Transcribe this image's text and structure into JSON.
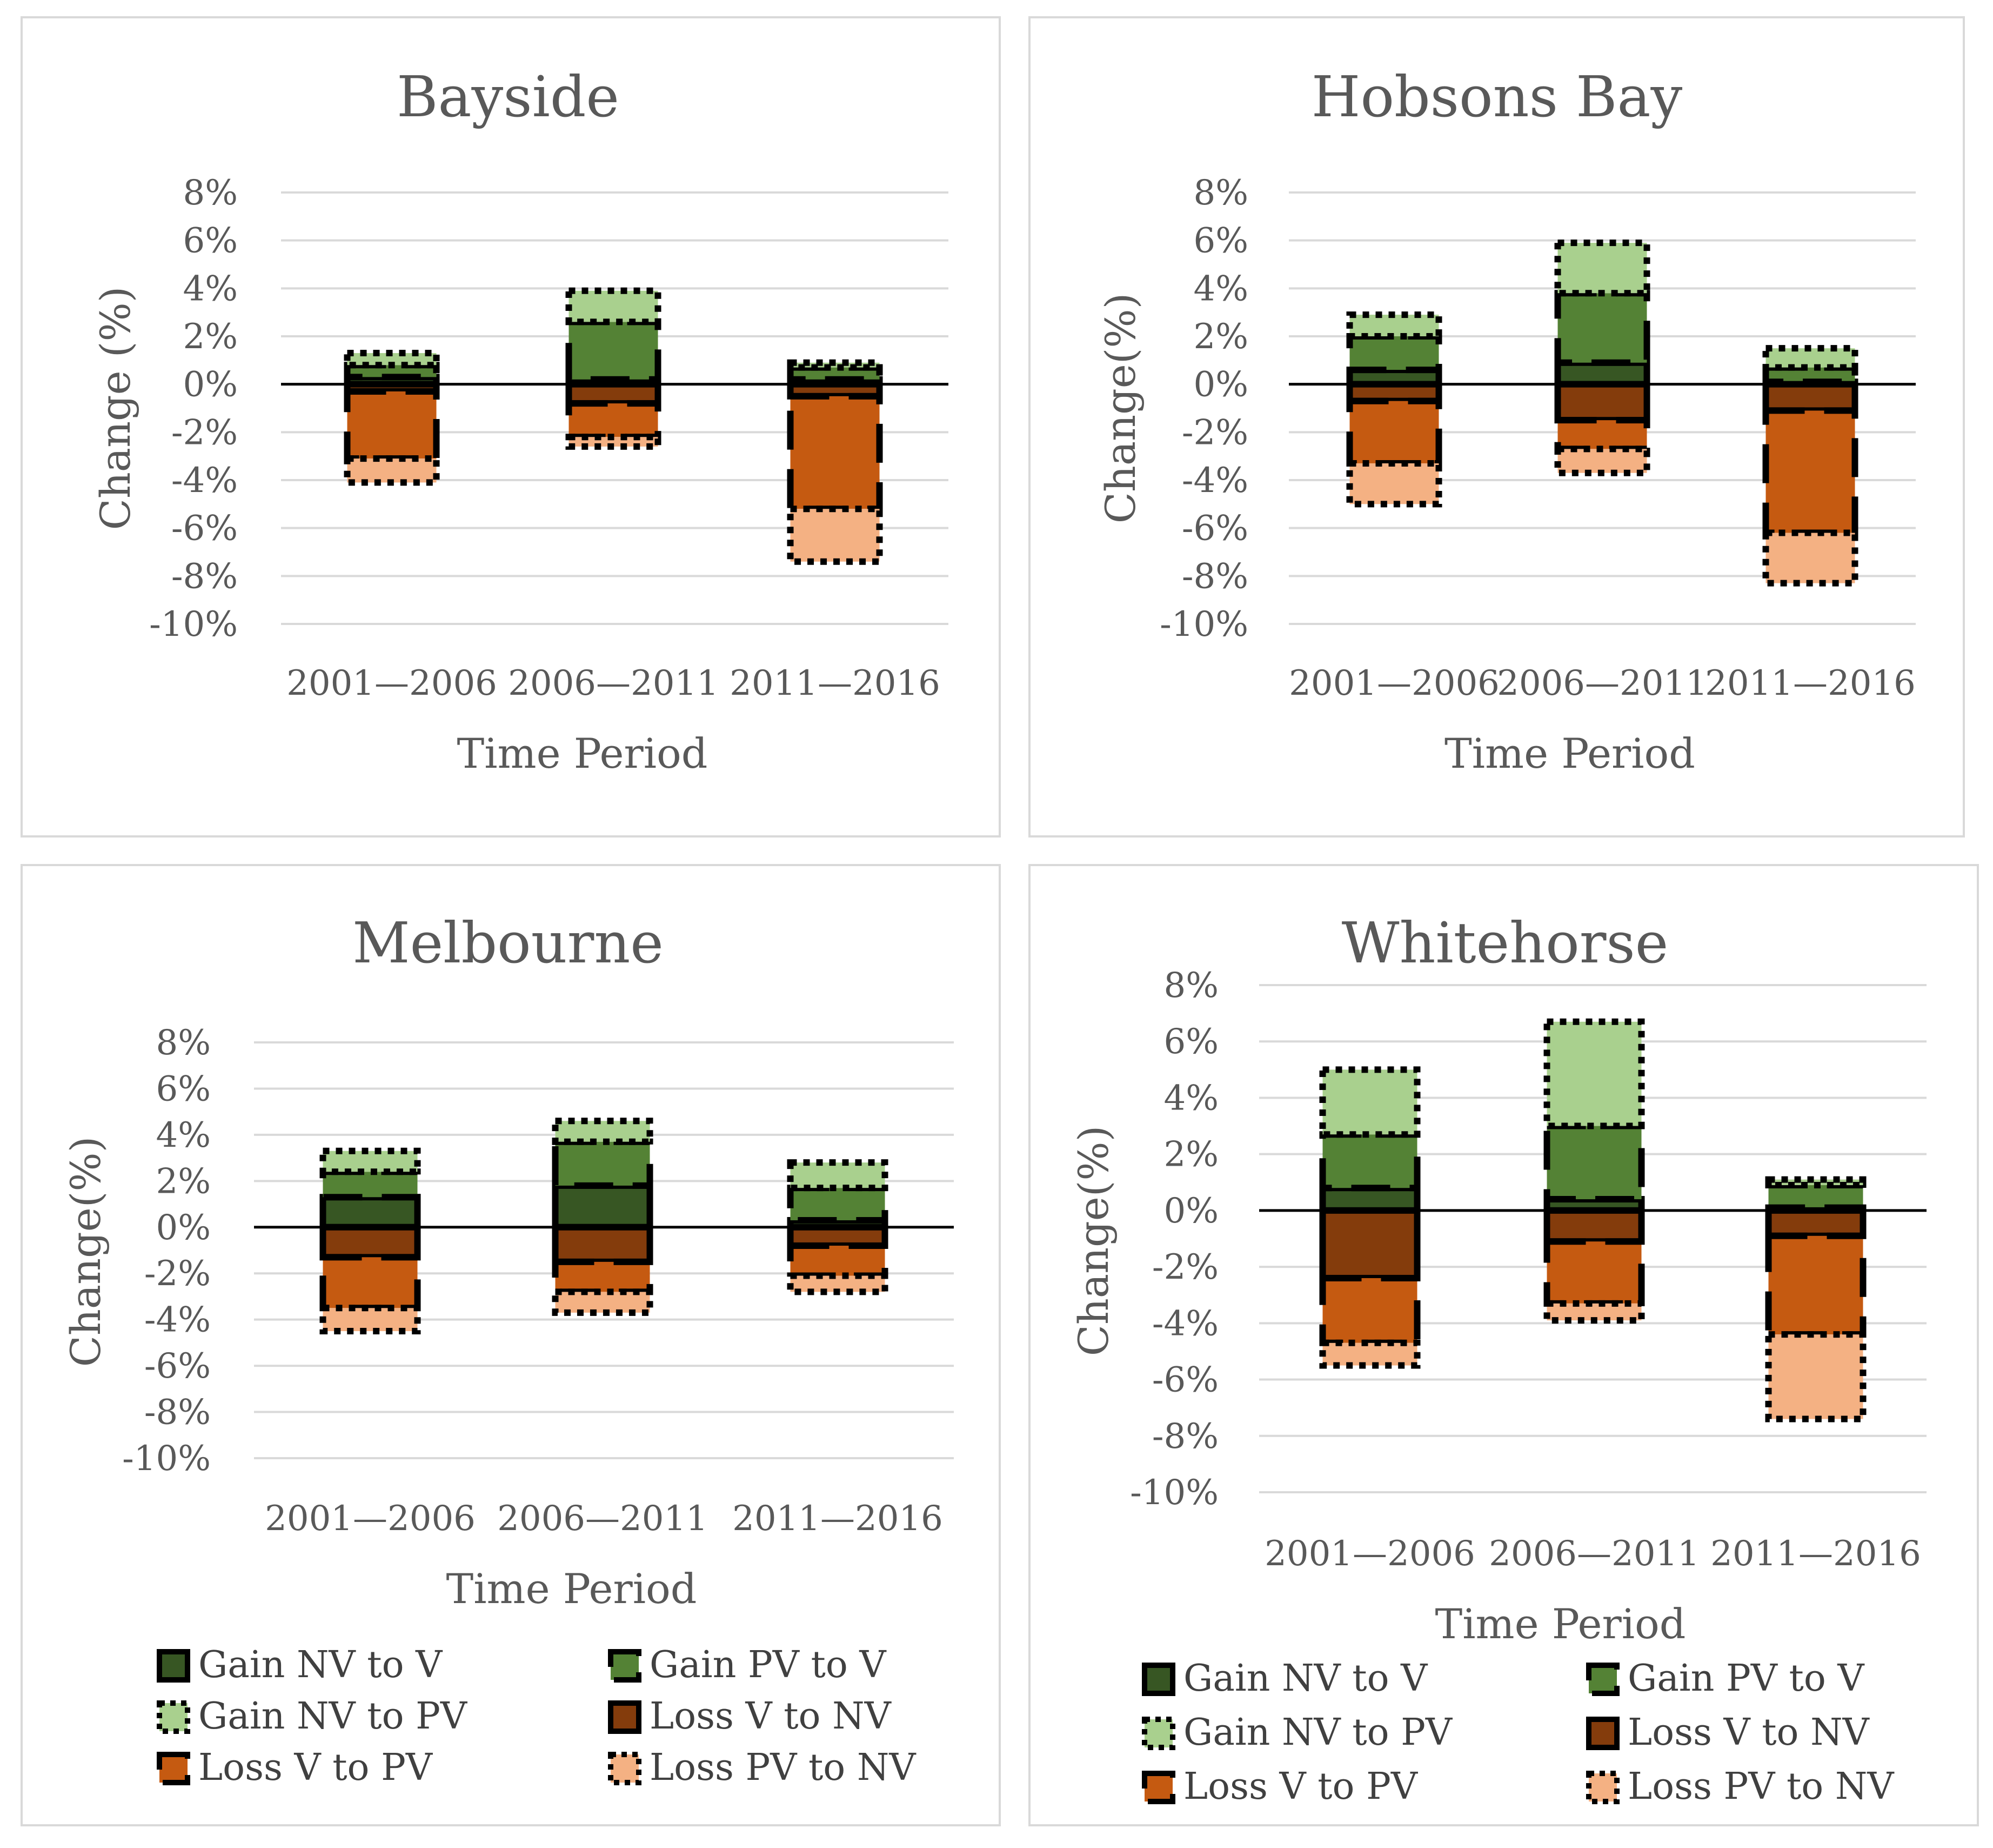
{
  "chart_data": [
    {
      "type": "bar",
      "stacked": true,
      "title": "Bayside",
      "xlabel": "Time Period",
      "ylabel": "Change (%)",
      "ylim": [
        -10,
        8
      ],
      "yticks": [
        "8%",
        "6%",
        "4%",
        "2%",
        "0%",
        "-2%",
        "-4%",
        "-6%",
        "-8%",
        "-10%"
      ],
      "categories": [
        "2001—2006",
        "2006—2011",
        "2011—2016"
      ],
      "series": [
        {
          "name": "Gain  NV to V",
          "values": [
            0.3,
            0.2,
            0.2
          ]
        },
        {
          "name": "Gain  PV to V",
          "values": [
            0.5,
            2.4,
            0.5
          ]
        },
        {
          "name": "Gain NV to PV",
          "values": [
            0.5,
            1.3,
            0.2
          ]
        },
        {
          "name": "Loss V to NV",
          "values": [
            -0.3,
            -0.8,
            -0.5
          ]
        },
        {
          "name": "Loss   V to PV",
          "values": [
            -2.8,
            -1.4,
            -4.7
          ]
        },
        {
          "name": "Loss PV to NV",
          "values": [
            -1.0,
            -0.4,
            -2.2
          ]
        }
      ]
    },
    {
      "type": "bar",
      "stacked": true,
      "title": "Hobsons  Bay",
      "xlabel": "Time Period",
      "ylabel": "Change(%)",
      "ylim": [
        -10,
        8
      ],
      "yticks": [
        "8%",
        "6%",
        "4%",
        "2%",
        "0%",
        "-2%",
        "-4%",
        "-6%",
        "-8%",
        "-10%"
      ],
      "categories": [
        "2001—2006",
        "2006—2011",
        "2011—2016"
      ],
      "series": [
        {
          "name": "Gain  NV to V",
          "values": [
            0.6,
            0.9,
            0.1
          ]
        },
        {
          "name": "Gain  PV to V",
          "values": [
            1.4,
            2.9,
            0.6
          ]
        },
        {
          "name": "Gain NV to PV",
          "values": [
            0.9,
            2.1,
            0.8
          ]
        },
        {
          "name": "Loss V to NV",
          "values": [
            -0.7,
            -1.5,
            -1.1
          ]
        },
        {
          "name": "Loss   V to PV",
          "values": [
            -2.6,
            -1.2,
            -5.1
          ]
        },
        {
          "name": "Loss PV to NV",
          "values": [
            -1.7,
            -1.0,
            -2.1
          ]
        }
      ]
    },
    {
      "type": "bar",
      "stacked": true,
      "title": "Melbourne",
      "xlabel": "Time Period",
      "ylabel": "Change(%)",
      "ylim": [
        -10,
        8
      ],
      "yticks": [
        "8%",
        "6%",
        "4%",
        "2%",
        "0%",
        "-2%",
        "-4%",
        "-6%",
        "-8%",
        "-10%"
      ],
      "categories": [
        "2001—2006",
        "2006—2011",
        "2011—2016"
      ],
      "series": [
        {
          "name": "Gain  NV to V",
          "values": [
            1.3,
            1.8,
            0.3
          ]
        },
        {
          "name": "Gain  PV to V",
          "values": [
            1.1,
            1.9,
            1.4
          ]
        },
        {
          "name": "Gain NV to PV",
          "values": [
            0.9,
            0.9,
            1.1
          ]
        },
        {
          "name": "Loss V to NV",
          "values": [
            -1.3,
            -1.5,
            -0.8
          ]
        },
        {
          "name": "Loss   V to PV",
          "values": [
            -2.2,
            -1.3,
            -1.3
          ]
        },
        {
          "name": "Loss PV to NV",
          "values": [
            -1.0,
            -0.9,
            -0.7
          ]
        }
      ]
    },
    {
      "type": "bar",
      "stacked": true,
      "title": "Whitehorse",
      "xlabel": "Time Period",
      "ylabel": "Change(%)",
      "ylim": [
        -10,
        8
      ],
      "yticks": [
        "8%",
        "6%",
        "4%",
        "2%",
        "0%",
        "-2%",
        "-4%",
        "-6%",
        "-8%",
        "-10%"
      ],
      "categories": [
        "2001—2006",
        "2006—2011",
        "2011—2016"
      ],
      "series": [
        {
          "name": "Gain  NV to V",
          "values": [
            0.8,
            0.4,
            0.1
          ]
        },
        {
          "name": "Gain  PV to V",
          "values": [
            1.9,
            2.6,
            0.8
          ]
        },
        {
          "name": "Gain NV to PV",
          "values": [
            2.3,
            3.7,
            0.2
          ]
        },
        {
          "name": "Loss V to NV",
          "values": [
            -2.4,
            -1.1,
            -0.9
          ]
        },
        {
          "name": "Loss   V to PV",
          "values": [
            -2.3,
            -2.2,
            -3.5
          ]
        },
        {
          "name": "Loss PV to NV",
          "values": [
            -0.8,
            -0.6,
            -3.0
          ]
        }
      ]
    }
  ],
  "legends": [
    [
      "Gain  NV to V",
      "Gain  PV to V",
      "Gain NV to PV",
      "Loss V to NV",
      "Loss   V to PV",
      "Loss PV to NV"
    ],
    [
      "Gain  NV to V",
      "Gain  PV to V",
      "Gain NV to PV",
      "Loss V to NV",
      "Loss   V to PV",
      "Loss PV to NV"
    ]
  ],
  "colors": {
    "series_fill": [
      "#375623",
      "#548235",
      "#a9d08e",
      "#843c0c",
      "#c55a11",
      "#f4b183"
    ],
    "gridline": "#d9d9d9",
    "zero_line": "#000000",
    "panel_border": "#d9d9d9",
    "text": "#595959"
  },
  "series_dash": [
    "solid",
    "long-dash",
    "dotted",
    "solid",
    "long-dash",
    "dotted"
  ]
}
